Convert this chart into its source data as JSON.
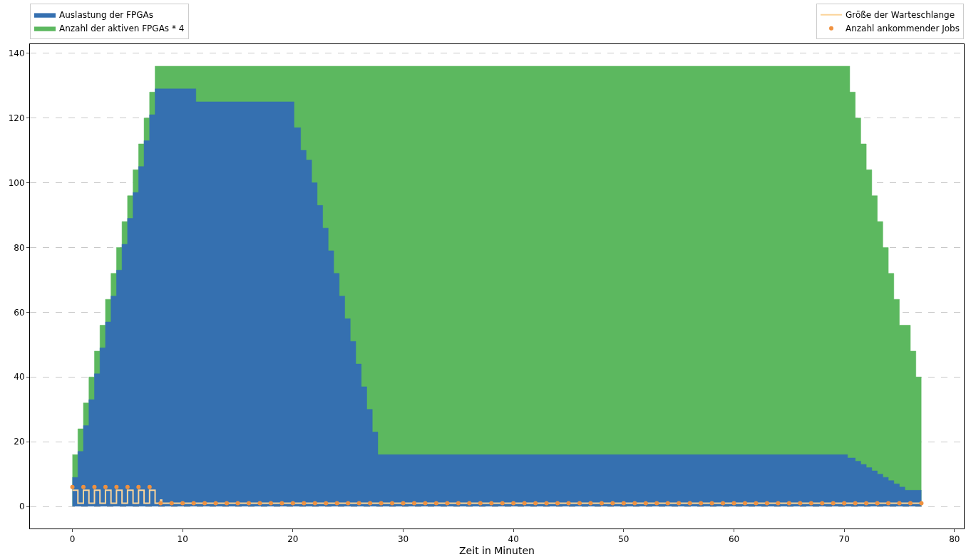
{
  "chart_data": {
    "type": "area",
    "xlabel": "Zeit in Minuten",
    "xlim": [
      -3.85,
      80.85
    ],
    "ylim": [
      -6.8,
      142.8
    ],
    "xticks": [
      0,
      10,
      20,
      30,
      40,
      50,
      60,
      70,
      80
    ],
    "yticks": [
      0,
      20,
      40,
      60,
      80,
      100,
      120,
      140
    ],
    "grid": "y",
    "legend": "top",
    "series": [
      {
        "name": "Auslastung der FPGAs",
        "color": "#3570b0",
        "x": [
          0,
          0.5,
          0.5,
          1,
          1,
          1.5,
          1.5,
          2,
          2,
          2.5,
          2.5,
          3,
          3,
          3.5,
          3.5,
          4,
          4,
          4.5,
          4.5,
          5,
          5,
          5.5,
          5.5,
          6,
          6,
          6.5,
          6.5,
          7,
          7,
          7.5,
          7.5,
          11.2,
          11.2,
          20.1,
          20.1,
          20.7,
          20.7,
          21.2,
          21.2,
          21.7,
          21.7,
          22.2,
          22.2,
          22.7,
          22.7,
          23.2,
          23.2,
          23.7,
          23.7,
          24.2,
          24.2,
          24.7,
          24.7,
          25.2,
          25.2,
          25.7,
          25.7,
          26.2,
          26.2,
          26.7,
          26.7,
          27.2,
          27.2,
          27.7,
          27.7,
          70.3,
          70.3,
          71,
          71,
          71.5,
          71.5,
          72,
          72,
          72.5,
          72.5,
          73,
          73,
          73.5,
          73.5,
          74,
          74,
          74.5,
          74.5,
          75,
          75,
          75.5,
          75.5,
          77
        ],
        "values": [
          9,
          9,
          17,
          17,
          25,
          25,
          33,
          33,
          41,
          41,
          49,
          49,
          57,
          57,
          65,
          65,
          73,
          73,
          81,
          81,
          89,
          89,
          97,
          97,
          105,
          105,
          113,
          113,
          121,
          121,
          129,
          129,
          125,
          125,
          117,
          117,
          110,
          110,
          107,
          107,
          100,
          100,
          93,
          93,
          86,
          86,
          79,
          79,
          72,
          72,
          65,
          65,
          58,
          58,
          51,
          51,
          44,
          44,
          37,
          37,
          30,
          30,
          23,
          23,
          16,
          16,
          15,
          15,
          14,
          14,
          13,
          13,
          12,
          12,
          11,
          11,
          10,
          10,
          9,
          9,
          8,
          8,
          7,
          7,
          6,
          6,
          5,
          5
        ]
      },
      {
        "name": "Anzahl der aktiven FPGAs * 4",
        "color": "#5cb85f",
        "x": [
          0,
          0.5,
          0.5,
          1,
          1,
          1.5,
          1.5,
          2,
          2,
          2.5,
          2.5,
          3,
          3,
          3.5,
          3.5,
          4,
          4,
          4.5,
          4.5,
          5,
          5,
          5.5,
          5.5,
          6,
          6,
          6.5,
          6.5,
          7,
          7,
          7.5,
          7.5,
          70.5,
          70.5,
          71,
          71,
          71.5,
          71.5,
          72,
          72,
          72.5,
          72.5,
          73,
          73,
          73.5,
          73.5,
          74,
          74,
          74.5,
          74.5,
          75,
          75,
          76,
          76,
          76.5,
          76.5,
          77
        ],
        "values": [
          16,
          16,
          24,
          24,
          32,
          32,
          40,
          40,
          48,
          48,
          56,
          56,
          64,
          64,
          72,
          72,
          80,
          80,
          88,
          88,
          96,
          96,
          104,
          104,
          112,
          112,
          120,
          120,
          128,
          128,
          136,
          136,
          128,
          128,
          120,
          120,
          112,
          112,
          104,
          104,
          96,
          96,
          88,
          88,
          80,
          80,
          72,
          72,
          64,
          64,
          56,
          56,
          48,
          48,
          40,
          40
        ]
      },
      {
        "name": "Größe der Warteschlange",
        "type": "step",
        "color": "#fbd49a",
        "x": [
          0,
          0.5,
          1,
          1.5,
          2,
          2.5,
          3,
          3.5,
          4,
          4.5,
          5,
          5.5,
          6,
          6.5,
          7,
          7.5,
          8,
          8.1,
          77
        ],
        "values": [
          5,
          1,
          5,
          1,
          5,
          1,
          5,
          1,
          5,
          1,
          5,
          1,
          5,
          1,
          5,
          1,
          2,
          1,
          1
        ]
      },
      {
        "name": "Anzahl ankommender Jobs",
        "type": "scatter",
        "marker": "circle",
        "color": "#f0913f",
        "x": [
          0,
          1,
          2,
          3,
          4,
          5,
          6,
          7,
          8,
          9,
          10,
          11,
          12,
          13,
          14,
          15,
          16,
          17,
          18,
          19,
          20,
          21,
          22,
          23,
          24,
          25,
          26,
          27,
          28,
          29,
          30,
          31,
          32,
          33,
          34,
          35,
          36,
          37,
          38,
          39,
          40,
          41,
          42,
          43,
          44,
          45,
          46,
          47,
          48,
          49,
          50,
          51,
          52,
          53,
          54,
          55,
          56,
          57,
          58,
          59,
          60,
          61,
          62,
          63,
          64,
          65,
          66,
          67,
          68,
          69,
          70,
          71,
          72,
          73,
          74,
          75,
          76,
          77
        ],
        "values": [
          6,
          6,
          6,
          6,
          6,
          6,
          6,
          6,
          1,
          1,
          1,
          1,
          1,
          1,
          1,
          1,
          1,
          1,
          1,
          1,
          1,
          1,
          1,
          1,
          1,
          1,
          1,
          1,
          1,
          1,
          1,
          1,
          1,
          1,
          1,
          1,
          1,
          1,
          1,
          1,
          1,
          1,
          1,
          1,
          1,
          1,
          1,
          1,
          1,
          1,
          1,
          1,
          1,
          1,
          1,
          1,
          1,
          1,
          1,
          1,
          1,
          1,
          1,
          1,
          1,
          1,
          1,
          1,
          1,
          1,
          1,
          1,
          1,
          1,
          1,
          1,
          1,
          1
        ]
      }
    ]
  }
}
